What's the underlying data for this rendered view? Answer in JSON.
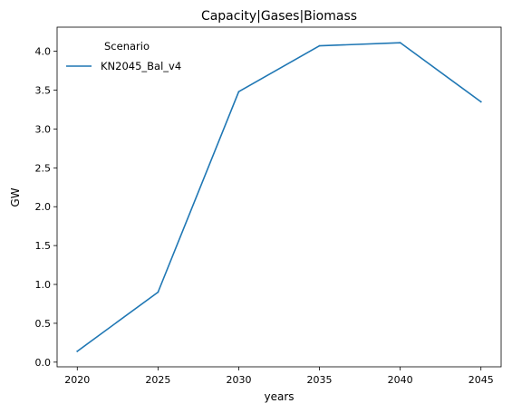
{
  "chart_data": {
    "type": "line",
    "title": "Capacity|Gases|Biomass",
    "xlabel": "years",
    "ylabel": "GW",
    "x": [
      2020,
      2025,
      2030,
      2035,
      2040,
      2045
    ],
    "x_ticks": [
      2020,
      2025,
      2030,
      2035,
      2040,
      2045
    ],
    "y_ticks": [
      0.0,
      0.5,
      1.0,
      1.5,
      2.0,
      2.5,
      3.0,
      3.5,
      4.0
    ],
    "y_tick_labels": [
      "0.0",
      "0.5",
      "1.0",
      "1.5",
      "2.0",
      "2.5",
      "3.0",
      "3.5",
      "4.0"
    ],
    "xlim": [
      2018.75,
      2046.25
    ],
    "ylim": [
      -0.06,
      4.31
    ],
    "grid": false,
    "legend": {
      "title": "Scenario",
      "placement": "top-left"
    },
    "series": [
      {
        "name": "KN2045_Bal_v4",
        "color": "#1f77b4",
        "values": [
          0.14,
          0.9,
          3.48,
          4.07,
          4.11,
          3.35
        ]
      }
    ]
  }
}
